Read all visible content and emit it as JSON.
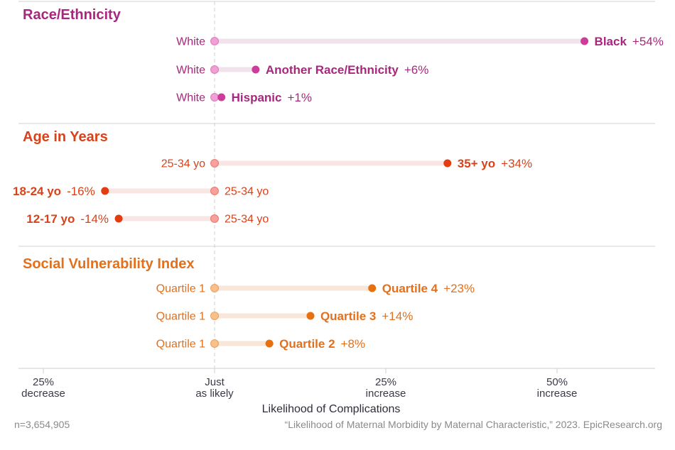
{
  "chart_data": {
    "type": "dumbbell",
    "xlabel": "Likelihood of Complications",
    "xlim": [
      -25,
      63
    ],
    "xticks": [
      {
        "value": -25,
        "line1": "25%",
        "line2": "decrease"
      },
      {
        "value": 0,
        "line1": "Just",
        "line2": "as likely"
      },
      {
        "value": 25,
        "line1": "25%",
        "line2": "increase"
      },
      {
        "value": 50,
        "line1": "50%",
        "line2": "increase"
      }
    ],
    "reference_line": 0,
    "grid": false,
    "groups": [
      {
        "title": "Race/Ethnicity",
        "color": "#a8267e",
        "dot_color": "#cc3d9a",
        "ref_dot_color": "#f0a0d4",
        "bar_color": "#f1e3ec",
        "rows": [
          {
            "reference": "White",
            "comparison": "Black",
            "value": 54,
            "pct_label": "+54%"
          },
          {
            "reference": "White",
            "comparison": "Another Race/Ethnicity",
            "value": 6,
            "pct_label": "+6%"
          },
          {
            "reference": "White",
            "comparison": "Hispanic",
            "value": 1,
            "pct_label": "+1%"
          }
        ]
      },
      {
        "title": "Age in Years",
        "color": "#d8421a",
        "dot_color": "#e23c10",
        "ref_dot_color": "#f8a0a0",
        "bar_color": "#f8e6e4",
        "rows": [
          {
            "reference": "25-34 yo",
            "comparison": "35+ yo",
            "value": 34,
            "pct_label": "+34%"
          },
          {
            "reference": "25-34 yo",
            "comparison": "18-24 yo",
            "value": -16,
            "pct_label": "-16%"
          },
          {
            "reference": "25-34 yo",
            "comparison": "12-17 yo",
            "value": -14,
            "pct_label": "-14%"
          }
        ]
      },
      {
        "title": "Social Vulnerability Index",
        "color": "#e2701c",
        "dot_color": "#e8700e",
        "ref_dot_color": "#f8c08a",
        "bar_color": "#f8e6d8",
        "rows": [
          {
            "reference": "Quartile 1",
            "comparison": "Quartile 4",
            "value": 23,
            "pct_label": "+23%"
          },
          {
            "reference": "Quartile 1",
            "comparison": "Quartile 3",
            "value": 14,
            "pct_label": "+14%"
          },
          {
            "reference": "Quartile 1",
            "comparison": "Quartile 2",
            "value": 8,
            "pct_label": "+8%"
          }
        ]
      }
    ]
  },
  "footer": {
    "sample_size": "n=3,654,905",
    "source": "“Likelihood of Maternal Morbidity by Maternal Characteristic,” 2023. EpicResearch.org"
  }
}
